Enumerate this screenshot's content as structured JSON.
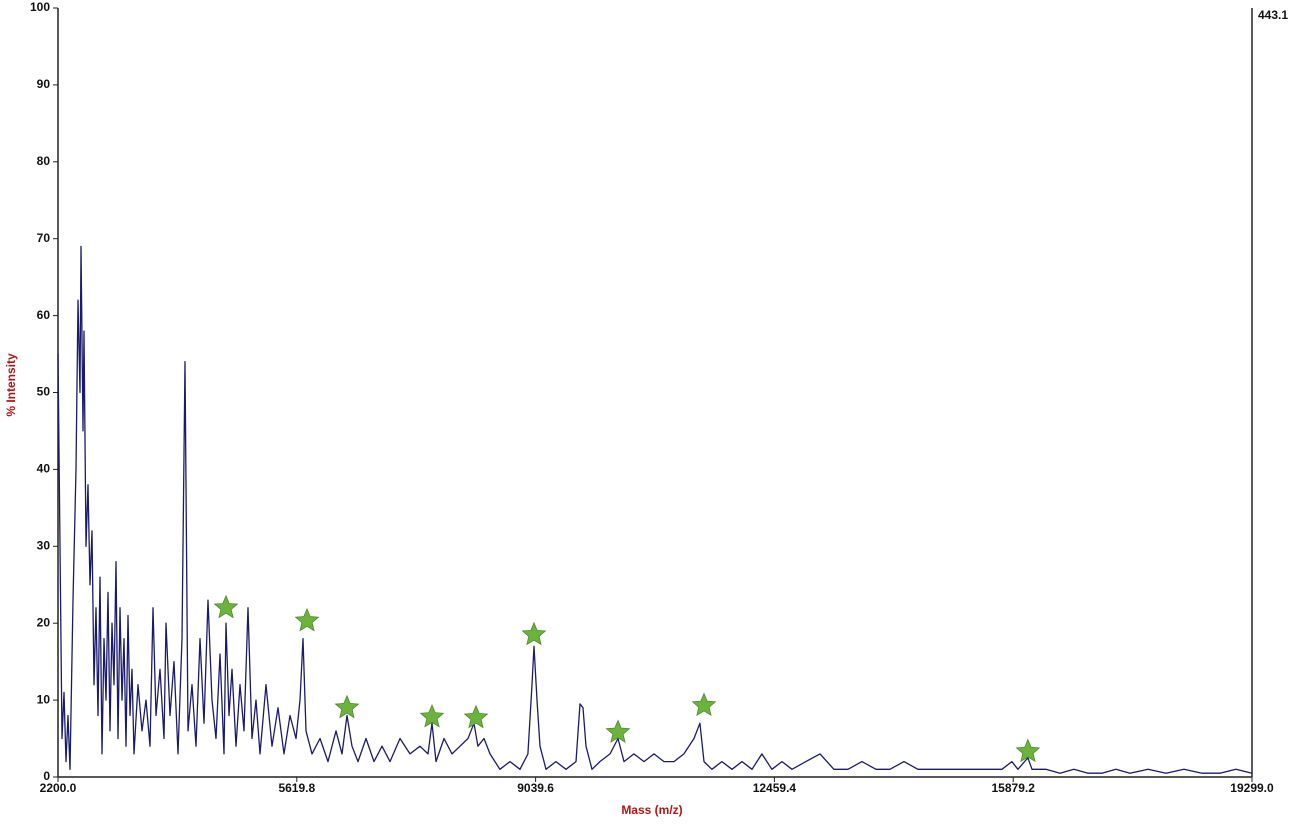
{
  "chart_data": {
    "type": "line",
    "x_label": "Mass (m/z)",
    "y_label": "% Intensity",
    "max_intensity": 443.1,
    "color": "#1b1b6b",
    "x": [
      2200,
      2229,
      2257,
      2286,
      2315,
      2343,
      2372,
      2415,
      2458,
      2486,
      2515,
      2529,
      2558,
      2572,
      2601,
      2630,
      2658,
      2687,
      2716,
      2744,
      2773,
      2801,
      2830,
      2859,
      2887,
      2916,
      2945,
      2973,
      3002,
      3031,
      3059,
      3088,
      3116,
      3145,
      3174,
      3202,
      3231,
      3260,
      3288,
      3346,
      3403,
      3460,
      3517,
      3560,
      3603,
      3661,
      3718,
      3747,
      3804,
      3861,
      3918,
      3976,
      4019,
      4062,
      4119,
      4176,
      4233,
      4291,
      4348,
      4405,
      4463,
      4520,
      4577,
      4606,
      4649,
      4692,
      4749,
      4806,
      4864,
      4921,
      4978,
      5035,
      5093,
      5179,
      5264,
      5350,
      5436,
      5522,
      5608,
      5665,
      5708,
      5751,
      5837,
      5952,
      6066,
      6181,
      6267,
      6338,
      6410,
      6496,
      6611,
      6725,
      6840,
      6954,
      7097,
      7241,
      7384,
      7498,
      7556,
      7613,
      7728,
      7842,
      7957,
      8071,
      8157,
      8214,
      8300,
      8386,
      8529,
      8673,
      8816,
      8930,
      8988,
      9016,
      9059,
      9102,
      9188,
      9331,
      9475,
      9618,
      9675,
      9718,
      9761,
      9847,
      9961,
      10105,
      10219,
      10305,
      10448,
      10592,
      10735,
      10878,
      11021,
      11164,
      11308,
      11393,
      11451,
      11565,
      11708,
      11852,
      11995,
      12138,
      12281,
      12424,
      12568,
      12711,
      12911,
      13112,
      13312,
      13513,
      13713,
      13914,
      14114,
      14315,
      14515,
      14716,
      14916,
      15117,
      15317,
      15518,
      15718,
      15861,
      15947,
      16090,
      16148,
      16348,
      16549,
      16749,
      16950,
      17150,
      17350,
      17551,
      17809,
      18067,
      18324,
      18582,
      18840,
      19069,
      19299
    ],
    "values": [
      55,
      30,
      5,
      11,
      2,
      8,
      1,
      23,
      40,
      62,
      50,
      69,
      45,
      58,
      30,
      38,
      25,
      32,
      12,
      22,
      8,
      26,
      3,
      18,
      10,
      24,
      6,
      20,
      12,
      28,
      5,
      22,
      10,
      18,
      4,
      21,
      8,
      14,
      3,
      12,
      6,
      10,
      4,
      22,
      8,
      14,
      5,
      20,
      8,
      15,
      3,
      18,
      54,
      6,
      12,
      4,
      18,
      7,
      23,
      10,
      5,
      16,
      3,
      20,
      8,
      14,
      4,
      12,
      6,
      22,
      5,
      10,
      3,
      12,
      4,
      9,
      3,
      8,
      5,
      10,
      18,
      6,
      3,
      5,
      2,
      6,
      3,
      8,
      4,
      2,
      5,
      2,
      4,
      2,
      5,
      3,
      4,
      3,
      7,
      2,
      5,
      3,
      4,
      5,
      7,
      4,
      5,
      3,
      1,
      2,
      1,
      3,
      12,
      17,
      10,
      4,
      1,
      2,
      1,
      2,
      9.5,
      9,
      4,
      1,
      2,
      3,
      5,
      2,
      3,
      2,
      3,
      2,
      2,
      3,
      5,
      7,
      2,
      1,
      2,
      1,
      2,
      1,
      3,
      1,
      2,
      1,
      2,
      3,
      1,
      1,
      2,
      1,
      1,
      2,
      1,
      1,
      1,
      1,
      1,
      1,
      1,
      2,
      1,
      2.5,
      1,
      1,
      0.5,
      1,
      0.5,
      0.5,
      1,
      0.5,
      1,
      0.5,
      1,
      0.5,
      0.5,
      1,
      0.5
    ],
    "peak_markers": {
      "color": "#6cb33e",
      "x": [
        4606,
        5766,
        6338,
        7556,
        8186,
        9016,
        10219,
        11451,
        16090
      ],
      "values": [
        22,
        20.3,
        9,
        7.8,
        7.7,
        18.5,
        5.8,
        9.3,
        3.3
      ]
    },
    "xlim": [
      2200,
      19299
    ],
    "xticks": [
      {
        "value": 2200,
        "label": "2200.0"
      },
      {
        "value": 5619.8,
        "label": "5619.8"
      },
      {
        "value": 9039.6,
        "label": "9039.6"
      },
      {
        "value": 12459.4,
        "label": "12459.4"
      },
      {
        "value": 15879.2,
        "label": "15879.2"
      },
      {
        "value": 19299,
        "label": "19299.0"
      }
    ],
    "ylim": [
      0,
      100
    ],
    "yticks": [
      0,
      10,
      20,
      30,
      40,
      50,
      60,
      70,
      80,
      90,
      100
    ],
    "grid": false
  }
}
